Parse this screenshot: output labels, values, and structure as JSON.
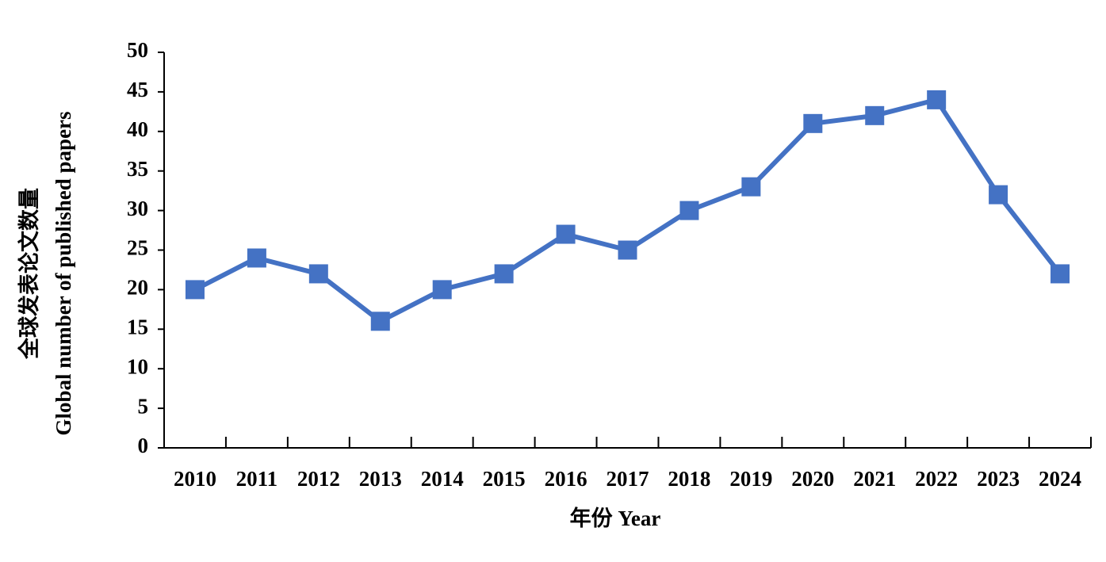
{
  "chart_data": {
    "type": "line",
    "y_label_zh": "全球发表论文数量",
    "y_label": "Global number of published papers",
    "x_label": "年份 Year",
    "categories": [
      "2010",
      "2011",
      "2012",
      "2013",
      "2014",
      "2015",
      "2016",
      "2017",
      "2018",
      "2019",
      "2020",
      "2021",
      "2022",
      "2023",
      "2024"
    ],
    "values": [
      20,
      24,
      22,
      16,
      20,
      22,
      27,
      25,
      30,
      33,
      41,
      42,
      44,
      32,
      22
    ],
    "color": "#4472c4",
    "ylim": [
      0,
      50
    ],
    "yticks": [
      0,
      5,
      10,
      15,
      20,
      25,
      30,
      35,
      40,
      45,
      50
    ],
    "grid": false
  }
}
